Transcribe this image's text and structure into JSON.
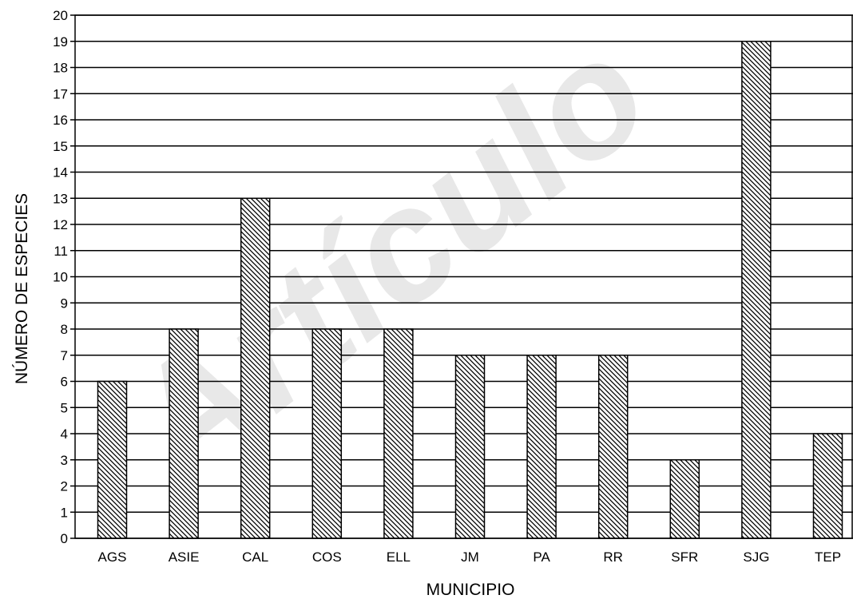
{
  "watermark": {
    "text": "Artículo"
  },
  "chart_data": {
    "type": "bar",
    "categories": [
      "AGS",
      "ASIE",
      "CAL",
      "COS",
      "ELL",
      "JM",
      "PA",
      "RR",
      "SFR",
      "SJG",
      "TEP"
    ],
    "values": [
      6,
      8,
      13,
      8,
      8,
      7,
      7,
      7,
      3,
      19,
      4
    ],
    "xlabel": "MUNICIPIO",
    "ylabel": "NÚMERO DE ESPECIES",
    "ylim": [
      0,
      20
    ],
    "yticks": [
      0,
      1,
      2,
      3,
      4,
      5,
      6,
      7,
      8,
      9,
      10,
      11,
      12,
      13,
      14,
      15,
      16,
      17,
      18,
      19,
      20
    ],
    "grid": true,
    "bar_fill": "diagonal-hatch",
    "colors": {
      "bar_stroke": "#000000",
      "grid": "#000000",
      "background": "#ffffff"
    }
  }
}
